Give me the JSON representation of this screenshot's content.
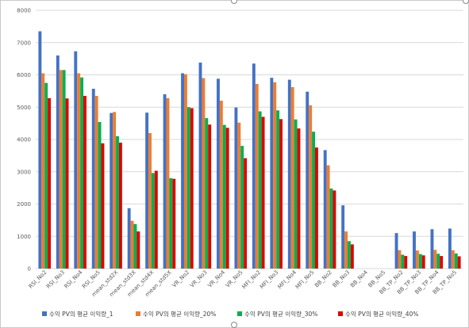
{
  "chart_data": {
    "type": "bar",
    "categories": [
      "RSI_No2",
      "RSI_No3",
      "RSI_No4",
      "RSI_No5",
      "mean_std2X",
      "mean_std3X",
      "mean_std4X",
      "mean_std5X",
      "VR_No2",
      "VR_No3",
      "VR_No4",
      "VR_No5",
      "MFI_No2",
      "MFI_No3",
      "MFI_No4",
      "MFI_No5",
      "BB_No2",
      "BB_No3",
      "BB_No4",
      "BB_No5",
      "BB_TP_No2",
      "BB_TP_No3",
      "BB_TP_No4",
      "BB_TP_No5"
    ],
    "series": [
      {
        "name": "수익 PV의 평균 이익량_1",
        "color": "#4472C4",
        "values": [
          7350,
          6600,
          6730,
          5570,
          4820,
          1870,
          4830,
          5400,
          6050,
          6380,
          5880,
          4990,
          6350,
          5910,
          5850,
          5480,
          3670,
          1960,
          0,
          0,
          1100,
          1150,
          1220,
          1240
        ]
      },
      {
        "name": "수익 PV의 평균 이익량_20%",
        "color": "#ED7D31",
        "values": [
          6050,
          6150,
          6050,
          5350,
          4850,
          1480,
          4200,
          5280,
          6020,
          5900,
          5200,
          4520,
          5720,
          5770,
          5620,
          5060,
          3200,
          1150,
          0,
          0,
          570,
          560,
          580,
          570
        ]
      },
      {
        "name": "수익 PV의 평균 이익량_30%",
        "color": "#00B050",
        "values": [
          5750,
          6150,
          5920,
          4540,
          4100,
          1380,
          2960,
          2800,
          5000,
          4660,
          4450,
          3800,
          4870,
          4900,
          4620,
          4240,
          2480,
          850,
          0,
          0,
          430,
          450,
          460,
          470
        ]
      },
      {
        "name": "수익 PV의 평균 이익량_40%",
        "color": "#E00000",
        "values": [
          5280,
          5270,
          5350,
          3880,
          3900,
          1150,
          3030,
          2780,
          4970,
          4460,
          4360,
          3420,
          4700,
          4630,
          4340,
          3750,
          2420,
          750,
          0,
          0,
          390,
          410,
          390,
          380
        ]
      }
    ],
    "ylim": [
      0,
      8000
    ],
    "yticks": [
      0,
      1000,
      2000,
      3000,
      4000,
      5000,
      6000,
      7000,
      8000
    ],
    "grid": true,
    "legend": "bottom"
  }
}
